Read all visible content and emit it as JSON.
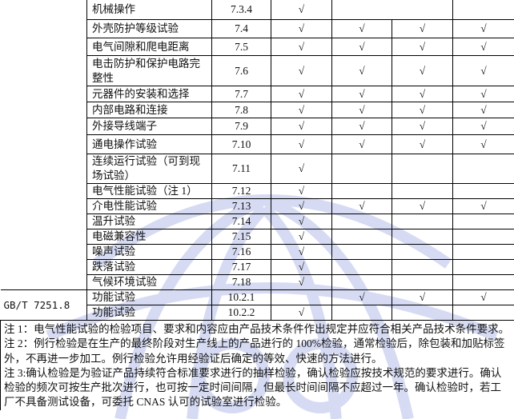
{
  "check_mark": "√",
  "watermark": {
    "color": "#c9cff0",
    "icon": "globe-ccc-watermark"
  },
  "rows": [
    {
      "item": "机械操作",
      "clause": "7.3.4",
      "checks": [
        true,
        false,
        false,
        false
      ],
      "merge45": true
    },
    {
      "item": "外壳防护等级试验",
      "clause": "7.4",
      "checks": [
        true,
        true,
        true,
        true
      ]
    },
    {
      "item": "电气间隙和爬电距离",
      "clause": "7.5",
      "checks": [
        true,
        true,
        true,
        true
      ]
    },
    {
      "item": "电击防护和保护电路完整性",
      "clause": "7.6",
      "checks": [
        true,
        true,
        true,
        true
      ]
    },
    {
      "item": "元器件的安装和选择",
      "clause": "7.7",
      "checks": [
        true,
        true,
        true,
        true
      ]
    },
    {
      "item": "内部电路和连接",
      "clause": "7.8",
      "checks": [
        true,
        true,
        true,
        true
      ]
    },
    {
      "item": "外接导线端子",
      "clause": "7.9",
      "checks": [
        true,
        true,
        true,
        true
      ]
    },
    {
      "item": "通电操作试验",
      "clause": "7.10",
      "checks": [
        true,
        true,
        true,
        true
      ]
    },
    {
      "item": "连续运行试验（可到现场试验）",
      "clause": "7.11",
      "checks": [
        true,
        false,
        false,
        false
      ]
    },
    {
      "item": "电气性能试验（注 1）",
      "clause": "7.12",
      "checks": [
        true,
        false,
        false,
        false
      ]
    },
    {
      "item": "介电性能试验",
      "clause": "7.13",
      "checks": [
        true,
        true,
        true,
        true
      ]
    },
    {
      "item": "温升试验",
      "clause": "7.14",
      "checks": [
        true,
        false,
        false,
        false
      ]
    },
    {
      "item": "电磁兼容性",
      "clause": "7.15",
      "checks": [
        true,
        false,
        false,
        false
      ]
    },
    {
      "item": "噪声试验",
      "clause": "7.16",
      "checks": [
        true,
        false,
        false,
        false
      ]
    },
    {
      "item": "跌落试验",
      "clause": "7.17",
      "checks": [
        true,
        false,
        false,
        false
      ]
    },
    {
      "item": "气候环境试验",
      "clause": "7.18",
      "checks": [
        true,
        false,
        false,
        false
      ]
    },
    {
      "item": "功能试验",
      "clause": "10.2.1",
      "checks": [
        false,
        true,
        true,
        true
      ],
      "standard": "GB/T 7251.8"
    },
    {
      "item": "功能试验",
      "clause": "10.2.2",
      "checks": [
        true,
        false,
        false,
        false
      ]
    }
  ],
  "notes": [
    "注 1：电气性能试验的检验项目、要求和内容应由产品技术条件作出规定并应符合相关产品技术条件要求。",
    "注 2：例行检验是在生产的最终阶段对生产线上的产品进行的 100%检验，通常检验后，除包装和加贴标签外，不再进一步加工。例行检验允许用经验证后确定的等效、快速的方法进行。",
    "注 3:确认检验是为验证产品持续符合标准要求进行的抽样检验，确认检验应按技术规范的要求进行。确认检验的频次可按生产批次进行，也可按一定时间间隔，但最长时间间隔不应超过一年。确认检验时，若工厂不具备测试设备，可委托 CNAS 认可的试验室进行检验。"
  ]
}
